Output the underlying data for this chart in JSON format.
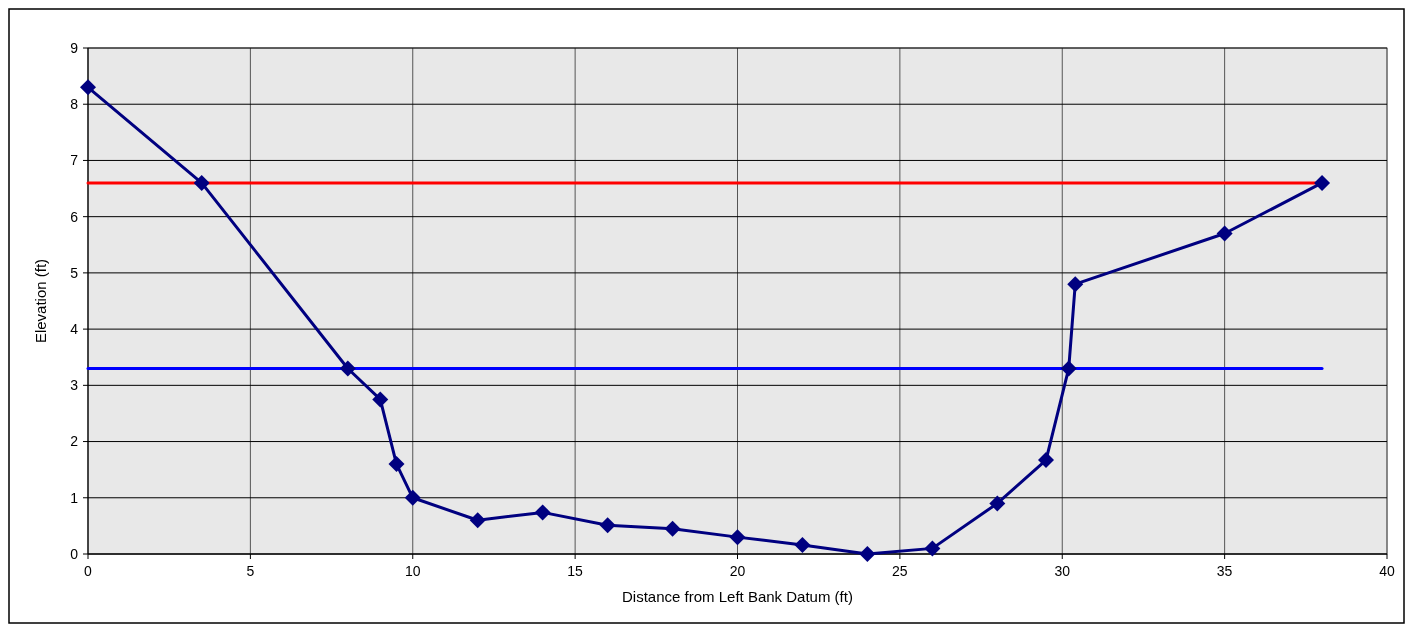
{
  "chart_data": {
    "type": "line",
    "xlabel": "Distance from Left Bank Datum (ft)",
    "ylabel": "Elevation (ft)",
    "xlim": [
      0,
      40
    ],
    "xticks": [
      0,
      5,
      10,
      15,
      20,
      25,
      30,
      35,
      40
    ],
    "ylim": [
      0,
      9
    ],
    "yticks": [
      0,
      1,
      2,
      3,
      4,
      5,
      6,
      7,
      8,
      9
    ],
    "grid": true,
    "series": [
      {
        "color": "#ff0000",
        "x": [
          0,
          38
        ],
        "values": [
          6.6,
          6.6
        ],
        "marker": "none"
      },
      {
        "color": "#0000ff",
        "x": [
          0,
          38
        ],
        "values": [
          3.3,
          3.3
        ],
        "marker": "none"
      },
      {
        "color": "#000080",
        "marker": "diamond",
        "x": [
          0,
          3.5,
          8,
          9,
          9.5,
          10,
          12,
          14,
          16,
          18,
          20,
          22,
          24,
          26,
          28,
          29.5,
          30.2,
          30.4,
          35,
          38
        ],
        "values": [
          8.3,
          6.6,
          3.3,
          2.75,
          1.6,
          1.0,
          0.6,
          0.74,
          0.51,
          0.45,
          0.3,
          0.16,
          0,
          0.1,
          0.9,
          1.67,
          3.3,
          4.8,
          5.7,
          6.6
        ]
      }
    ]
  }
}
